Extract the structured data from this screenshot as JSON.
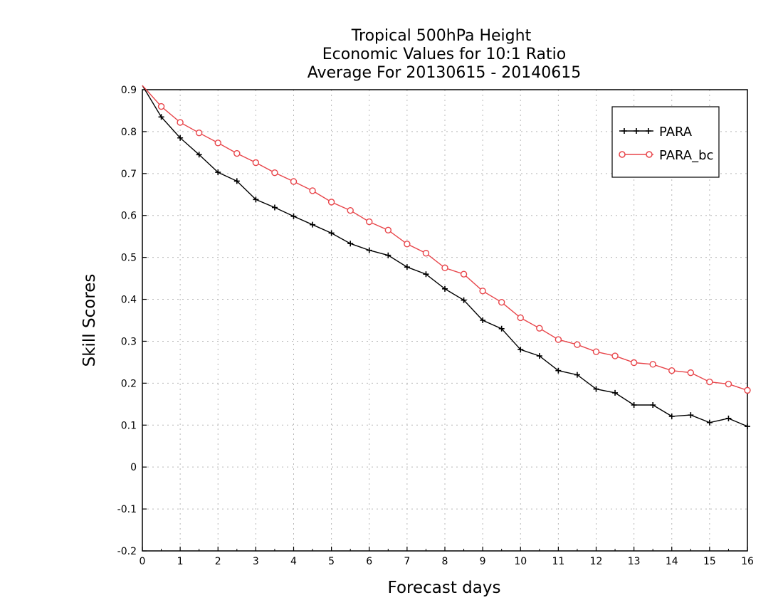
{
  "chart_data": {
    "type": "line",
    "title_lines": [
      "Tropical 500hPa Height",
      "Economic Values for 10:1 Ratio",
      "Average For 20130615 - 20140615"
    ],
    "xlabel": "Forecast days",
    "ylabel": "Skill Scores",
    "xlim": [
      0,
      16
    ],
    "ylim": [
      -0.2,
      0.9
    ],
    "xticks": [
      "0",
      "1",
      "2",
      "3",
      "4",
      "5",
      "6",
      "7",
      "8",
      "9",
      "10",
      "11",
      "12",
      "13",
      "14",
      "15",
      "16"
    ],
    "yticks": [
      "-0.2",
      "-0.1",
      "0",
      "0.1",
      "0.2",
      "0.3",
      "0.4",
      "0.5",
      "0.6",
      "0.7",
      "0.8",
      "0.9"
    ],
    "grid": true,
    "legend_position": "top-right",
    "x": [
      0,
      0.5,
      1,
      1.5,
      2,
      2.5,
      3,
      3.5,
      4,
      4.5,
      5,
      5.5,
      6,
      6.5,
      7,
      7.5,
      8,
      8.5,
      9,
      9.5,
      10,
      10.5,
      11,
      11.5,
      12,
      12.5,
      13,
      13.5,
      14,
      14.5,
      15,
      15.5,
      16
    ],
    "series": [
      {
        "name": "PARA",
        "color": "#000000",
        "marker": "plus",
        "values": [
          0.91,
          0.835,
          0.785,
          0.745,
          0.703,
          0.682,
          0.638,
          0.619,
          0.598,
          0.578,
          0.558,
          0.533,
          0.517,
          0.505,
          0.477,
          0.46,
          0.425,
          0.398,
          0.35,
          0.33,
          0.28,
          0.265,
          0.23,
          0.22,
          0.186,
          0.177,
          0.148,
          0.148,
          0.121,
          0.124,
          0.106,
          0.116,
          0.097
        ]
      },
      {
        "name": "PARA_bc",
        "color": "#e8454a",
        "marker": "circle",
        "values": [
          0.91,
          0.86,
          0.822,
          0.797,
          0.773,
          0.748,
          0.726,
          0.702,
          0.681,
          0.659,
          0.632,
          0.612,
          0.585,
          0.565,
          0.532,
          0.51,
          0.475,
          0.46,
          0.42,
          0.393,
          0.356,
          0.331,
          0.304,
          0.292,
          0.275,
          0.265,
          0.249,
          0.245,
          0.23,
          0.225,
          0.203,
          0.198,
          0.183
        ]
      }
    ]
  }
}
